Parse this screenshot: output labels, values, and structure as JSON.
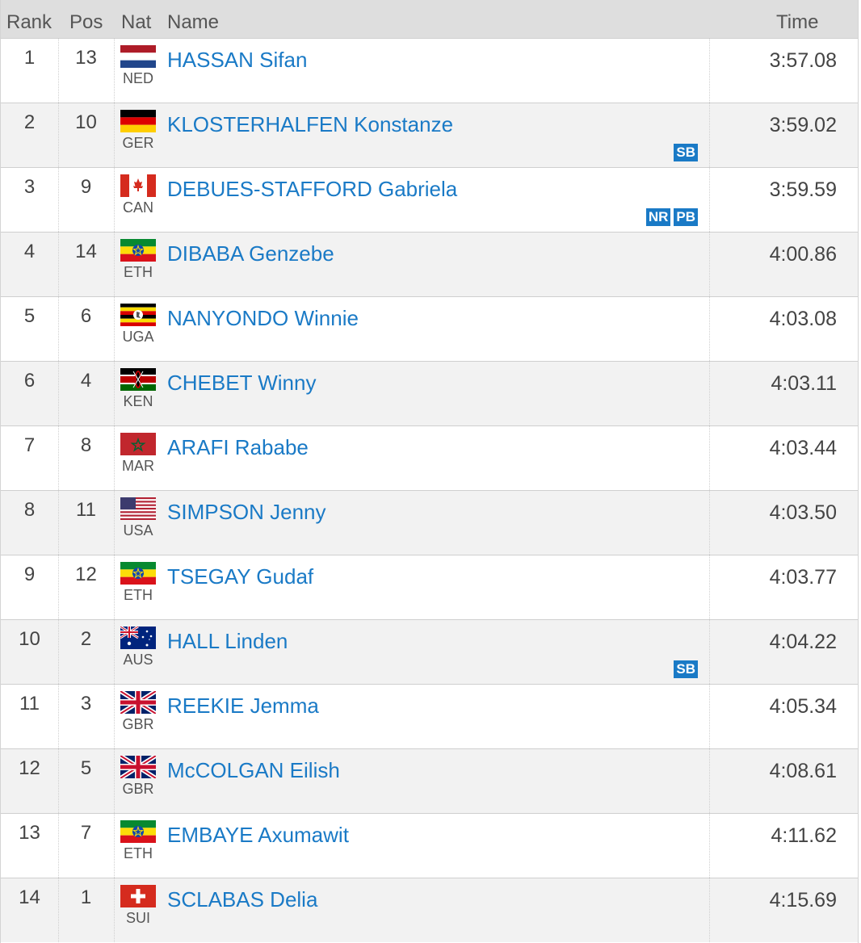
{
  "columns": {
    "rank": "Rank",
    "pos": "Pos",
    "nat": "Nat",
    "name": "Name",
    "time": "Time"
  },
  "rows": [
    {
      "rank": "1",
      "pos": "13",
      "nat": "NED",
      "flag": "netherlands-flag-icon",
      "name": "HASSAN Sifan",
      "time": "3:57.08",
      "badges": []
    },
    {
      "rank": "2",
      "pos": "10",
      "nat": "GER",
      "flag": "germany-flag-icon",
      "name": "KLOSTERHALFEN Konstanze",
      "time": "3:59.02",
      "badges": [
        "SB"
      ]
    },
    {
      "rank": "3",
      "pos": "9",
      "nat": "CAN",
      "flag": "canada-flag-icon",
      "name": "DEBUES-STAFFORD Gabriela",
      "time": "3:59.59",
      "badges": [
        "NR",
        "PB"
      ]
    },
    {
      "rank": "4",
      "pos": "14",
      "nat": "ETH",
      "flag": "ethiopia-flag-icon",
      "name": "DIBABA Genzebe",
      "time": "4:00.86",
      "badges": []
    },
    {
      "rank": "5",
      "pos": "6",
      "nat": "UGA",
      "flag": "uganda-flag-icon",
      "name": "NANYONDO Winnie",
      "time": "4:03.08",
      "badges": []
    },
    {
      "rank": "6",
      "pos": "4",
      "nat": "KEN",
      "flag": "kenya-flag-icon",
      "name": "CHEBET Winny",
      "time": "4:03.11",
      "badges": []
    },
    {
      "rank": "7",
      "pos": "8",
      "nat": "MAR",
      "flag": "morocco-flag-icon",
      "name": "ARAFI Rababe",
      "time": "4:03.44",
      "badges": []
    },
    {
      "rank": "8",
      "pos": "11",
      "nat": "USA",
      "flag": "usa-flag-icon",
      "name": "SIMPSON Jenny",
      "time": "4:03.50",
      "badges": []
    },
    {
      "rank": "9",
      "pos": "12",
      "nat": "ETH",
      "flag": "ethiopia-flag-icon",
      "name": "TSEGAY Gudaf",
      "time": "4:03.77",
      "badges": []
    },
    {
      "rank": "10",
      "pos": "2",
      "nat": "AUS",
      "flag": "australia-flag-icon",
      "name": "HALL Linden",
      "time": "4:04.22",
      "badges": [
        "SB"
      ]
    },
    {
      "rank": "11",
      "pos": "3",
      "nat": "GBR",
      "flag": "uk-flag-icon",
      "name": "REEKIE Jemma",
      "time": "4:05.34",
      "badges": []
    },
    {
      "rank": "12",
      "pos": "5",
      "nat": "GBR",
      "flag": "uk-flag-icon",
      "name": "McCOLGAN Eilish",
      "time": "4:08.61",
      "badges": []
    },
    {
      "rank": "13",
      "pos": "7",
      "nat": "ETH",
      "flag": "ethiopia-flag-icon",
      "name": "EMBAYE Axumawit",
      "time": "4:11.62",
      "badges": []
    },
    {
      "rank": "14",
      "pos": "1",
      "nat": "SUI",
      "flag": "switzerland-flag-icon",
      "name": "SCLABAS Delia",
      "time": "4:15.69",
      "badges": []
    }
  ],
  "colors": {
    "link": "#1a7ac6",
    "header_bg": "#dedede",
    "row_alt": "#f2f2f2",
    "badge_bg": "#1a7ac6"
  }
}
